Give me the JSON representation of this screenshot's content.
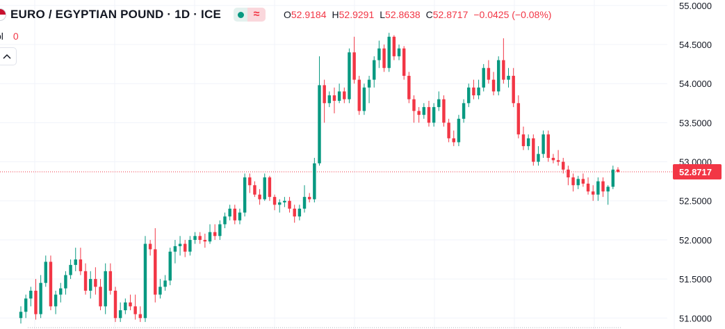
{
  "symbol": {
    "title": "EURO / EGYPTIAN POUND · 1D · ICE",
    "flag_icon": "eu-flag-icon"
  },
  "ohlc": {
    "open_label": "O",
    "open": "52.9184",
    "high_label": "H",
    "high": "52.9291",
    "low_label": "L",
    "low": "52.8638",
    "close_label": "C",
    "close": "52.8717",
    "change": "−0.0425 (−0.08%)"
  },
  "badges": {
    "market_icon": "green-dot-icon",
    "replay_symbol": "≈"
  },
  "volume": {
    "label": "ol",
    "value": "0"
  },
  "colors": {
    "up": "#089981",
    "down": "#f23645",
    "grid": "#f0f3fa",
    "last_price_line": "#f23645"
  },
  "chart_data": {
    "type": "candlestick",
    "yaxis": {
      "ticks": [
        "55.0000",
        "54.5000",
        "54.0000",
        "53.5000",
        "53.0000",
        "52.5000",
        "52.0000",
        "51.5000",
        "51.0000"
      ],
      "range": [
        50.86,
        55.07
      ]
    },
    "last_price": 52.8717,
    "last_price_label": "52.8717",
    "candles": [
      [
        51.0,
        51.15,
        50.93,
        51.08
      ],
      [
        51.08,
        51.3,
        51.0,
        51.25
      ],
      [
        51.25,
        51.4,
        51.15,
        51.35
      ],
      [
        51.35,
        51.5,
        50.98,
        51.05
      ],
      [
        51.05,
        51.55,
        51.0,
        51.45
      ],
      [
        51.45,
        51.8,
        51.4,
        51.72
      ],
      [
        51.72,
        51.8,
        51.1,
        51.15
      ],
      [
        51.15,
        51.35,
        51.05,
        51.3
      ],
      [
        51.3,
        51.45,
        51.2,
        51.38
      ],
      [
        51.38,
        51.6,
        51.3,
        51.55
      ],
      [
        51.55,
        51.75,
        51.5,
        51.68
      ],
      [
        51.68,
        51.9,
        51.6,
        51.75
      ],
      [
        51.75,
        51.9,
        51.55,
        51.6
      ],
      [
        51.6,
        51.7,
        51.3,
        51.35
      ],
      [
        51.35,
        51.6,
        51.25,
        51.5
      ],
      [
        51.5,
        51.65,
        51.3,
        51.4
      ],
      [
        51.4,
        51.5,
        51.1,
        51.15
      ],
      [
        51.15,
        51.7,
        51.05,
        51.6
      ],
      [
        51.6,
        51.7,
        51.3,
        51.35
      ],
      [
        51.35,
        51.4,
        50.95,
        51.0
      ],
      [
        51.0,
        51.2,
        50.95,
        51.1
      ],
      [
        51.1,
        51.25,
        51.05,
        51.2
      ],
      [
        51.2,
        51.3,
        51.1,
        51.15
      ],
      [
        51.15,
        51.3,
        50.98,
        51.05
      ],
      [
        51.05,
        51.15,
        50.95,
        51.0
      ],
      [
        51.0,
        52.05,
        50.95,
        51.95
      ],
      [
        51.95,
        52.0,
        51.8,
        51.88
      ],
      [
        51.88,
        52.15,
        51.2,
        51.3
      ],
      [
        51.3,
        51.5,
        51.25,
        51.4
      ],
      [
        51.4,
        51.55,
        51.35,
        51.48
      ],
      [
        51.48,
        51.9,
        51.42,
        51.85
      ],
      [
        51.85,
        52.0,
        51.7,
        51.92
      ],
      [
        51.92,
        52.05,
        51.8,
        51.95
      ],
      [
        51.95,
        52.0,
        51.78,
        51.85
      ],
      [
        51.85,
        52.05,
        51.8,
        52.0
      ],
      [
        52.0,
        52.1,
        51.95,
        52.05
      ],
      [
        52.05,
        52.1,
        51.95,
        52.0
      ],
      [
        52.0,
        52.08,
        51.9,
        51.98
      ],
      [
        51.98,
        52.2,
        51.95,
        52.1
      ],
      [
        52.1,
        52.2,
        52.0,
        52.05
      ],
      [
        52.05,
        52.25,
        52.0,
        52.2
      ],
      [
        52.2,
        52.35,
        52.15,
        52.3
      ],
      [
        52.3,
        52.45,
        52.25,
        52.4
      ],
      [
        52.4,
        52.45,
        52.2,
        52.25
      ],
      [
        52.25,
        52.4,
        52.2,
        52.35
      ],
      [
        52.35,
        52.85,
        52.3,
        52.8
      ],
      [
        52.8,
        52.85,
        52.6,
        52.7
      ],
      [
        52.7,
        52.75,
        52.55,
        52.58
      ],
      [
        52.58,
        52.65,
        52.45,
        52.52
      ],
      [
        52.52,
        52.85,
        52.5,
        52.8
      ],
      [
        52.8,
        52.82,
        52.5,
        52.55
      ],
      [
        52.55,
        52.58,
        52.38,
        52.45
      ],
      [
        52.45,
        52.52,
        52.35,
        52.48
      ],
      [
        52.48,
        52.55,
        52.42,
        52.5
      ],
      [
        52.5,
        52.55,
        52.35,
        52.4
      ],
      [
        52.4,
        52.45,
        52.22,
        52.3
      ],
      [
        52.3,
        52.45,
        52.25,
        52.4
      ],
      [
        52.4,
        52.7,
        52.35,
        52.55
      ],
      [
        52.55,
        52.6,
        52.48,
        52.52
      ],
      [
        52.52,
        53.05,
        52.48,
        52.98
      ],
      [
        52.98,
        54.35,
        52.95,
        53.98
      ],
      [
        53.98,
        54.05,
        53.5,
        53.75
      ],
      [
        53.75,
        53.9,
        53.7,
        53.85
      ],
      [
        53.85,
        53.95,
        53.62,
        53.78
      ],
      [
        53.78,
        54.0,
        53.75,
        53.9
      ],
      [
        53.9,
        53.95,
        53.75,
        53.8
      ],
      [
        53.8,
        54.45,
        53.75,
        54.4
      ],
      [
        54.4,
        54.6,
        54.0,
        54.05
      ],
      [
        54.05,
        54.1,
        53.6,
        53.65
      ],
      [
        53.65,
        54.0,
        53.6,
        53.95
      ],
      [
        53.95,
        54.1,
        53.75,
        54.05
      ],
      [
        54.05,
        54.35,
        53.95,
        54.3
      ],
      [
        54.3,
        54.55,
        54.2,
        54.45
      ],
      [
        54.45,
        54.5,
        54.15,
        54.2
      ],
      [
        54.2,
        54.65,
        54.15,
        54.6
      ],
      [
        54.6,
        54.62,
        54.3,
        54.35
      ],
      [
        54.35,
        54.5,
        54.3,
        54.45
      ],
      [
        54.45,
        54.48,
        54.05,
        54.1
      ],
      [
        54.1,
        54.15,
        53.75,
        53.8
      ],
      [
        53.8,
        53.85,
        53.5,
        53.65
      ],
      [
        53.65,
        53.7,
        53.5,
        53.6
      ],
      [
        53.6,
        53.75,
        53.55,
        53.7
      ],
      [
        53.7,
        53.78,
        53.45,
        53.5
      ],
      [
        53.5,
        53.75,
        53.45,
        53.7
      ],
      [
        53.7,
        53.9,
        53.65,
        53.8
      ],
      [
        53.8,
        53.85,
        53.45,
        53.5
      ],
      [
        53.5,
        53.55,
        53.25,
        53.3
      ],
      [
        53.3,
        53.4,
        53.2,
        53.25
      ],
      [
        53.25,
        53.6,
        53.2,
        53.55
      ],
      [
        53.55,
        53.8,
        53.5,
        53.75
      ],
      [
        53.75,
        54.0,
        53.7,
        53.95
      ],
      [
        53.95,
        54.05,
        53.8,
        53.85
      ],
      [
        53.85,
        54.05,
        53.8,
        53.95
      ],
      [
        53.95,
        54.25,
        53.9,
        54.2
      ],
      [
        54.2,
        54.3,
        54.0,
        54.05
      ],
      [
        54.05,
        54.15,
        53.85,
        53.9
      ],
      [
        53.9,
        54.35,
        53.85,
        54.3
      ],
      [
        54.3,
        54.58,
        54.0,
        54.05
      ],
      [
        54.05,
        54.2,
        53.95,
        54.1
      ],
      [
        54.1,
        54.2,
        53.7,
        53.75
      ],
      [
        53.75,
        53.85,
        53.3,
        53.35
      ],
      [
        53.35,
        53.45,
        53.15,
        53.2
      ],
      [
        53.2,
        53.35,
        53.15,
        53.3
      ],
      [
        53.3,
        53.35,
        52.95,
        53.0
      ],
      [
        53.0,
        53.2,
        52.95,
        53.1
      ],
      [
        53.1,
        53.4,
        53.05,
        53.35
      ],
      [
        53.35,
        53.4,
        53.0,
        53.05
      ],
      [
        53.05,
        53.1,
        52.98,
        53.02
      ],
      [
        53.02,
        53.15,
        52.95,
        53.0
      ],
      [
        53.0,
        53.05,
        52.85,
        52.9
      ],
      [
        52.9,
        52.95,
        52.7,
        52.8
      ],
      [
        52.8,
        52.85,
        52.62,
        52.7
      ],
      [
        52.7,
        52.82,
        52.65,
        52.78
      ],
      [
        52.78,
        52.85,
        52.68,
        52.72
      ],
      [
        52.72,
        52.8,
        52.58,
        52.62
      ],
      [
        52.62,
        52.7,
        52.5,
        52.58
      ],
      [
        52.58,
        52.8,
        52.5,
        52.75
      ],
      [
        52.75,
        52.8,
        52.55,
        52.62
      ],
      [
        52.62,
        52.7,
        52.45,
        52.68
      ],
      [
        52.68,
        52.95,
        52.65,
        52.9
      ],
      [
        52.9,
        52.93,
        52.86,
        52.87
      ]
    ]
  }
}
